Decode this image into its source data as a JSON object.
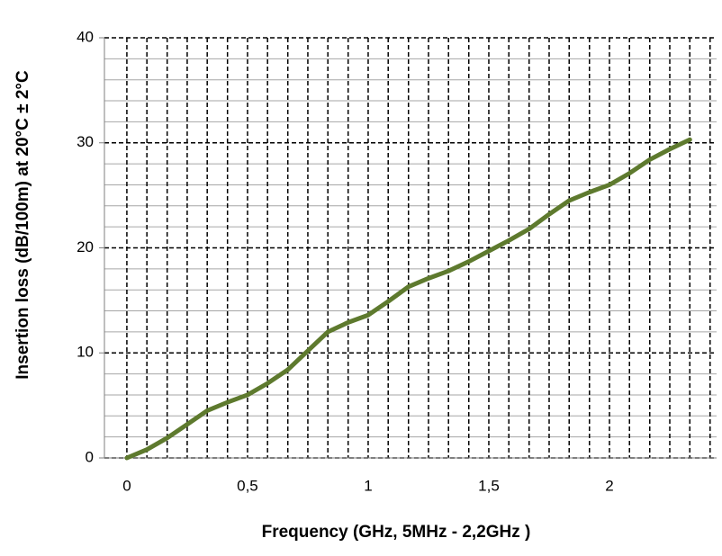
{
  "chart_data": {
    "type": "line",
    "x_label": "Frequency (GHz, 5MHz - 2,2GHz )",
    "y_label": "Insertion loss (dB/100m) at 20°C ± 2°C",
    "x": [
      0,
      0.083,
      0.167,
      0.25,
      0.333,
      0.417,
      0.5,
      0.583,
      0.667,
      0.75,
      0.833,
      0.917,
      1,
      1.083,
      1.167,
      1.25,
      1.333,
      1.417,
      1.5,
      1.583,
      1.667,
      1.75,
      1.833,
      1.917,
      2,
      2.083,
      2.167,
      2.25,
      2.333
    ],
    "series": [
      {
        "color": "#5e7a2e",
        "values": [
          0,
          0.8,
          1.9,
          3.2,
          4.5,
          5.3,
          6,
          7.1,
          8.4,
          10.2,
          12,
          12.9,
          13.6,
          14.9,
          16.3,
          17.1,
          17.8,
          18.7,
          19.7,
          20.7,
          21.8,
          23.2,
          24.5,
          25.3,
          26,
          27.1,
          28.4,
          29.4,
          30.3
        ]
      }
    ],
    "xlim": [
      -0.093,
      2.444
    ],
    "ylim": [
      0,
      40
    ],
    "xticks": [
      0,
      {
        "value": 0.5,
        "label": "0,5"
      },
      1,
      {
        "value": 1.5,
        "label": "1,5"
      },
      2
    ],
    "yticks": [
      0,
      10,
      20,
      30,
      40
    ],
    "x_grid": [
      0,
      0.083,
      0.167,
      0.25,
      0.333,
      0.417,
      0.5,
      0.583,
      0.667,
      0.75,
      0.833,
      0.917,
      1,
      1.083,
      1.167,
      1.25,
      1.333,
      1.417,
      1.5,
      1.583,
      1.667,
      1.75,
      1.833,
      1.917,
      2,
      2.083,
      2.167,
      2.25,
      2.333,
      2.417
    ],
    "y_minor_grid": [
      2,
      4,
      6,
      8,
      12,
      14,
      16,
      18,
      22,
      24,
      26,
      28,
      32,
      34,
      36,
      38
    ]
  }
}
